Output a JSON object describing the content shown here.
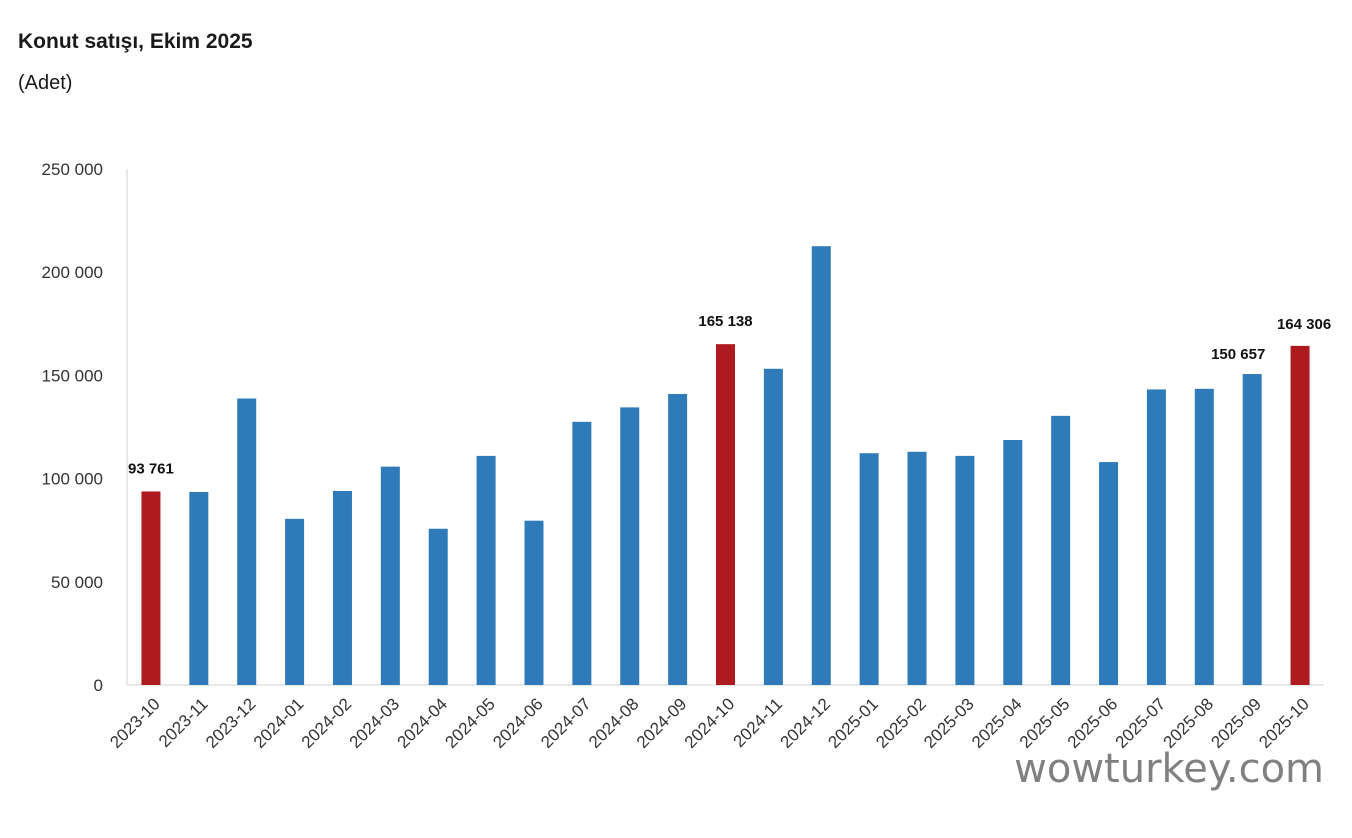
{
  "chart_data": {
    "type": "bar",
    "title": "Konut satışı, Ekim 2025",
    "subtitle": "(Adet)",
    "xlabel": "",
    "ylabel": "",
    "ylim": [
      0,
      250000
    ],
    "yticks": [
      0,
      50000,
      100000,
      150000,
      200000,
      250000
    ],
    "ytick_labels": [
      "0",
      "50 000",
      "100 000",
      "150 000",
      "200 000",
      "250 000"
    ],
    "grid": false,
    "legend": "none",
    "colors": {
      "default": "#2f7ab8",
      "highlight": "#ad1a1f"
    },
    "categories": [
      "2023-10",
      "2023-11",
      "2023-12",
      "2024-01",
      "2024-02",
      "2024-03",
      "2024-04",
      "2024-05",
      "2024-06",
      "2024-07",
      "2024-08",
      "2024-09",
      "2024-10",
      "2024-11",
      "2024-12",
      "2025-01",
      "2025-02",
      "2025-03",
      "2025-04",
      "2025-05",
      "2025-06",
      "2025-07",
      "2025-08",
      "2025-09",
      "2025-10"
    ],
    "values": [
      93761,
      93500,
      138800,
      80500,
      94000,
      105800,
      75700,
      111000,
      79600,
      127500,
      134500,
      141000,
      165138,
      153200,
      212600,
      112300,
      113000,
      111000,
      118700,
      130400,
      108000,
      143200,
      143500,
      150657,
      164306
    ],
    "highlighted": [
      "2023-10",
      "2024-10",
      "2025-10"
    ],
    "data_labels": [
      {
        "category": "2023-10",
        "text": "93 761"
      },
      {
        "category": "2024-10",
        "text": "165 138"
      },
      {
        "category": "2025-09",
        "text": "150 657"
      },
      {
        "category": "2025-10",
        "text": "164 306"
      }
    ]
  },
  "watermark": "wowturkey.com"
}
